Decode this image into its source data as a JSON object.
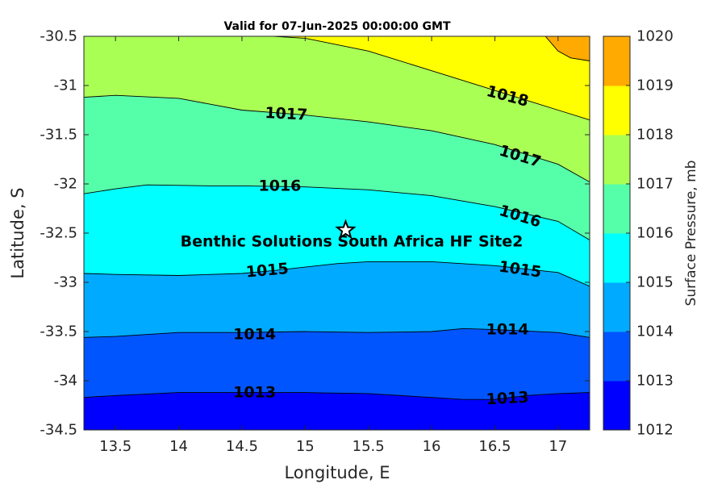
{
  "chart_data": {
    "type": "contour",
    "title": "Valid for 07-Jun-2025 00:00:00 GMT",
    "xlabel": "Longitude, E",
    "ylabel": "Latitude, S",
    "xlim": [
      13.25,
      17.25
    ],
    "ylim": [
      -34.5,
      -30.5
    ],
    "x_ticks": [
      13.5,
      14,
      14.5,
      15,
      15.5,
      16,
      16.5,
      17
    ],
    "x_tick_labels": [
      "13.5",
      "14",
      "14.5",
      "15",
      "15.5",
      "16",
      "16.5",
      "17"
    ],
    "y_ticks": [
      -30.5,
      -31,
      -31.5,
      -32,
      -32.5,
      -33,
      -33.5,
      -34,
      -34.5
    ],
    "y_tick_labels": [
      "-30.5",
      "-31",
      "-31.5",
      "-32",
      "-32.5",
      "-33",
      "-33.5",
      "-34",
      "-34.5"
    ],
    "colorbar": {
      "label": "Surface Pressure, mb",
      "ticks": [
        1012,
        1013,
        1014,
        1015,
        1016,
        1017,
        1018,
        1019,
        1020
      ],
      "tick_labels": [
        "1012",
        "1013",
        "1014",
        "1015",
        "1016",
        "1017",
        "1018",
        "1019",
        "1020"
      ],
      "colors": [
        "#0000ff",
        "#0055ff",
        "#00aaff",
        "#00ffff",
        "#55ffaa",
        "#aaff55",
        "#ffff00",
        "#ffaa00",
        "#ff5500"
      ]
    },
    "contours": [
      {
        "level": 1013,
        "points": [
          [
            13.25,
            -34.17
          ],
          [
            13.5,
            -34.15
          ],
          [
            14,
            -34.12
          ],
          [
            14.5,
            -34.12
          ],
          [
            15,
            -34.12
          ],
          [
            15.5,
            -34.13
          ],
          [
            16,
            -34.17
          ],
          [
            16.25,
            -34.19
          ],
          [
            16.5,
            -34.19
          ],
          [
            16.75,
            -34.15
          ],
          [
            17,
            -34.13
          ],
          [
            17.25,
            -34.12
          ]
        ]
      },
      {
        "level": 1014,
        "points": [
          [
            13.25,
            -33.56
          ],
          [
            13.5,
            -33.55
          ],
          [
            14,
            -33.51
          ],
          [
            14.5,
            -33.51
          ],
          [
            15,
            -33.5
          ],
          [
            15.5,
            -33.51
          ],
          [
            16,
            -33.5
          ],
          [
            16.25,
            -33.47
          ],
          [
            16.5,
            -33.48
          ],
          [
            17,
            -33.51
          ],
          [
            17.25,
            -33.56
          ]
        ]
      },
      {
        "level": 1015,
        "points": [
          [
            13.25,
            -32.91
          ],
          [
            13.5,
            -32.92
          ],
          [
            14,
            -32.93
          ],
          [
            14.5,
            -32.91
          ],
          [
            14.75,
            -32.88
          ],
          [
            15.25,
            -32.81
          ],
          [
            15.5,
            -32.79
          ],
          [
            16,
            -32.79
          ],
          [
            16.5,
            -32.83
          ],
          [
            17,
            -32.9
          ],
          [
            17.25,
            -33.04
          ]
        ]
      },
      {
        "level": 1016,
        "points": [
          [
            13.25,
            -32.1
          ],
          [
            13.5,
            -32.05
          ],
          [
            13.75,
            -32.01
          ],
          [
            14.25,
            -32.02
          ],
          [
            14.5,
            -32.02
          ],
          [
            15,
            -32.03
          ],
          [
            15.5,
            -32.06
          ],
          [
            16,
            -32.12
          ],
          [
            16.5,
            -32.23
          ],
          [
            17,
            -32.38
          ],
          [
            17.25,
            -32.57
          ]
        ]
      },
      {
        "level": 1017,
        "points": [
          [
            13.25,
            -31.12
          ],
          [
            13.5,
            -31.1
          ],
          [
            14,
            -31.13
          ],
          [
            14.5,
            -31.25
          ],
          [
            15,
            -31.3
          ],
          [
            15.5,
            -31.37
          ],
          [
            16,
            -31.46
          ],
          [
            16.5,
            -31.6
          ],
          [
            17,
            -31.8
          ],
          [
            17.25,
            -31.98
          ]
        ]
      },
      {
        "level": 1018,
        "points": [
          [
            14.75,
            -30.5
          ],
          [
            15,
            -30.52
          ],
          [
            15.5,
            -30.65
          ],
          [
            16,
            -30.85
          ],
          [
            16.5,
            -31.05
          ],
          [
            17,
            -31.25
          ],
          [
            17.25,
            -31.35
          ]
        ]
      },
      {
        "level": 1019,
        "points": [
          [
            16.9,
            -30.5
          ],
          [
            17,
            -30.65
          ],
          [
            17.1,
            -30.72
          ],
          [
            17.25,
            -30.75
          ]
        ]
      }
    ],
    "contour_labels": [
      {
        "text": "1017",
        "lon": 14.85,
        "lat": -31.29,
        "angle": 3
      },
      {
        "text": "1018",
        "lon": 16.6,
        "lat": -31.11,
        "angle": 15
      },
      {
        "text": "1016",
        "lon": 14.8,
        "lat": -32.02,
        "angle": 0
      },
      {
        "text": "1017",
        "lon": 16.7,
        "lat": -31.72,
        "angle": 17
      },
      {
        "text": "1016",
        "lon": 16.7,
        "lat": -32.33,
        "angle": 17
      },
      {
        "text": "1015",
        "lon": 14.7,
        "lat": -32.88,
        "angle": -5
      },
      {
        "text": "1015",
        "lon": 16.7,
        "lat": -32.87,
        "angle": 8
      },
      {
        "text": "1014",
        "lon": 14.6,
        "lat": -33.53,
        "angle": 0
      },
      {
        "text": "1014",
        "lon": 16.6,
        "lat": -33.48,
        "angle": 0
      },
      {
        "text": "1013",
        "lon": 14.6,
        "lat": -34.12,
        "angle": 0
      },
      {
        "text": "1013",
        "lon": 16.6,
        "lat": -34.18,
        "angle": -3
      }
    ],
    "site": {
      "name": "Benthic Solutions South Africa HF Site2",
      "lon": 15.32,
      "lat": -32.47
    }
  }
}
